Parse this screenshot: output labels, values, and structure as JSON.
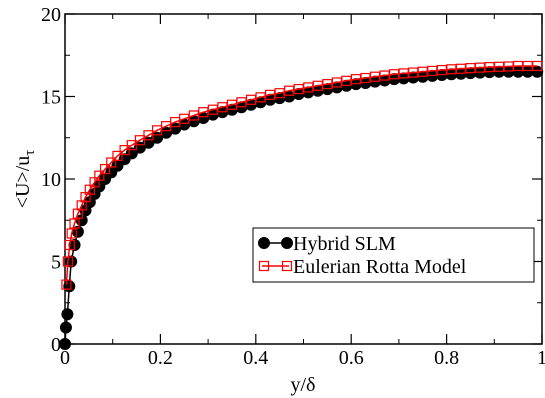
{
  "chart_data": {
    "type": "line",
    "xlabel": "y/δ",
    "ylabel_main": "<U>/u",
    "ylabel_sub": "τ",
    "xlim": [
      0,
      1
    ],
    "ylim": [
      0,
      20
    ],
    "x_ticks": [
      0,
      0.2,
      0.4,
      0.6,
      0.8,
      1
    ],
    "x_tick_labels": [
      "0",
      "0.2",
      "0.4",
      "0.6",
      "0.8",
      "1"
    ],
    "y_ticks": [
      0,
      5,
      10,
      15,
      20
    ],
    "y_tick_labels": [
      "0",
      "5",
      "10",
      "15",
      "20"
    ],
    "grid": false,
    "legend_position": "right",
    "series": [
      {
        "name": "Hybrid SLM",
        "color": "#000000",
        "marker": "filled-circle",
        "x": [
          0.0,
          0.002,
          0.005,
          0.009,
          0.013,
          0.02,
          0.027,
          0.035,
          0.043,
          0.052,
          0.062,
          0.072,
          0.084,
          0.097,
          0.11,
          0.125,
          0.14,
          0.157,
          0.175,
          0.193,
          0.212,
          0.231,
          0.25,
          0.27,
          0.29,
          0.31,
          0.33,
          0.35,
          0.37,
          0.39,
          0.41,
          0.43,
          0.45,
          0.47,
          0.49,
          0.51,
          0.53,
          0.55,
          0.57,
          0.59,
          0.61,
          0.63,
          0.65,
          0.67,
          0.69,
          0.71,
          0.73,
          0.75,
          0.77,
          0.79,
          0.81,
          0.83,
          0.85,
          0.87,
          0.89,
          0.91,
          0.93,
          0.95,
          0.97,
          0.99
        ],
        "y": [
          0.0,
          1.0,
          1.8,
          3.5,
          5.0,
          6.0,
          6.8,
          7.5,
          8.1,
          8.6,
          9.1,
          9.55,
          10.0,
          10.4,
          10.8,
          11.2,
          11.55,
          11.9,
          12.2,
          12.5,
          12.8,
          13.05,
          13.3,
          13.5,
          13.7,
          13.9,
          14.05,
          14.2,
          14.35,
          14.5,
          14.65,
          14.8,
          14.9,
          15.0,
          15.15,
          15.25,
          15.35,
          15.45,
          15.55,
          15.65,
          15.75,
          15.82,
          15.9,
          15.97,
          16.05,
          16.1,
          16.15,
          16.2,
          16.25,
          16.3,
          16.35,
          16.38,
          16.42,
          16.45,
          16.48,
          16.5,
          16.5,
          16.5,
          16.5,
          16.5
        ]
      },
      {
        "name": "Eulerian Rotta Model",
        "color": "#ff0000",
        "marker": "open-square",
        "x": [
          0.003,
          0.006,
          0.01,
          0.014,
          0.02,
          0.027,
          0.035,
          0.043,
          0.052,
          0.062,
          0.072,
          0.084,
          0.097,
          0.11,
          0.125,
          0.14,
          0.157,
          0.175,
          0.193,
          0.212,
          0.231,
          0.25,
          0.27,
          0.29,
          0.31,
          0.33,
          0.35,
          0.37,
          0.39,
          0.41,
          0.43,
          0.45,
          0.47,
          0.49,
          0.51,
          0.53,
          0.55,
          0.57,
          0.59,
          0.61,
          0.63,
          0.65,
          0.67,
          0.69,
          0.71,
          0.73,
          0.75,
          0.77,
          0.79,
          0.81,
          0.83,
          0.85,
          0.87,
          0.89,
          0.91,
          0.93,
          0.95,
          0.97,
          0.99
        ],
        "y": [
          3.6,
          5.0,
          6.0,
          6.7,
          7.3,
          7.9,
          8.4,
          8.9,
          9.35,
          9.8,
          10.2,
          10.6,
          11.0,
          11.4,
          11.75,
          12.05,
          12.35,
          12.65,
          12.95,
          13.2,
          13.45,
          13.65,
          13.85,
          14.05,
          14.2,
          14.35,
          14.5,
          14.65,
          14.8,
          14.95,
          15.1,
          15.2,
          15.35,
          15.45,
          15.55,
          15.65,
          15.75,
          15.85,
          15.95,
          16.05,
          16.12,
          16.2,
          16.27,
          16.35,
          16.4,
          16.45,
          16.5,
          16.55,
          16.6,
          16.65,
          16.68,
          16.72,
          16.75,
          16.78,
          16.8,
          16.82,
          16.85,
          16.85,
          16.85
        ]
      }
    ]
  }
}
